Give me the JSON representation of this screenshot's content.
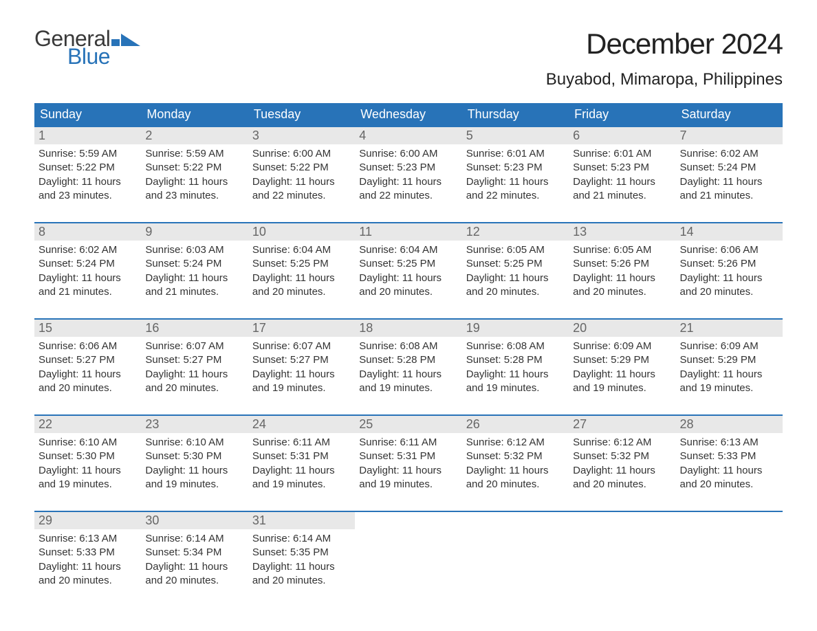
{
  "logo": {
    "line1": "General",
    "line2": "Blue",
    "shape_color": "#2873b8"
  },
  "title": "December 2024",
  "location": "Buyabod, Mimaropa, Philippines",
  "colors": {
    "header_bg": "#2873b8",
    "header_text": "#ffffff",
    "daynum_bg": "#e8e8e8",
    "daynum_text": "#666666",
    "body_text": "#333333",
    "week_border": "#2873b8"
  },
  "day_labels": [
    "Sunday",
    "Monday",
    "Tuesday",
    "Wednesday",
    "Thursday",
    "Friday",
    "Saturday"
  ],
  "weeks": [
    [
      {
        "n": "1",
        "sunrise": "5:59 AM",
        "sunset": "5:22 PM",
        "daylight": "11 hours and 23 minutes."
      },
      {
        "n": "2",
        "sunrise": "5:59 AM",
        "sunset": "5:22 PM",
        "daylight": "11 hours and 23 minutes."
      },
      {
        "n": "3",
        "sunrise": "6:00 AM",
        "sunset": "5:22 PM",
        "daylight": "11 hours and 22 minutes."
      },
      {
        "n": "4",
        "sunrise": "6:00 AM",
        "sunset": "5:23 PM",
        "daylight": "11 hours and 22 minutes."
      },
      {
        "n": "5",
        "sunrise": "6:01 AM",
        "sunset": "5:23 PM",
        "daylight": "11 hours and 22 minutes."
      },
      {
        "n": "6",
        "sunrise": "6:01 AM",
        "sunset": "5:23 PM",
        "daylight": "11 hours and 21 minutes."
      },
      {
        "n": "7",
        "sunrise": "6:02 AM",
        "sunset": "5:24 PM",
        "daylight": "11 hours and 21 minutes."
      }
    ],
    [
      {
        "n": "8",
        "sunrise": "6:02 AM",
        "sunset": "5:24 PM",
        "daylight": "11 hours and 21 minutes."
      },
      {
        "n": "9",
        "sunrise": "6:03 AM",
        "sunset": "5:24 PM",
        "daylight": "11 hours and 21 minutes."
      },
      {
        "n": "10",
        "sunrise": "6:04 AM",
        "sunset": "5:25 PM",
        "daylight": "11 hours and 20 minutes."
      },
      {
        "n": "11",
        "sunrise": "6:04 AM",
        "sunset": "5:25 PM",
        "daylight": "11 hours and 20 minutes."
      },
      {
        "n": "12",
        "sunrise": "6:05 AM",
        "sunset": "5:25 PM",
        "daylight": "11 hours and 20 minutes."
      },
      {
        "n": "13",
        "sunrise": "6:05 AM",
        "sunset": "5:26 PM",
        "daylight": "11 hours and 20 minutes."
      },
      {
        "n": "14",
        "sunrise": "6:06 AM",
        "sunset": "5:26 PM",
        "daylight": "11 hours and 20 minutes."
      }
    ],
    [
      {
        "n": "15",
        "sunrise": "6:06 AM",
        "sunset": "5:27 PM",
        "daylight": "11 hours and 20 minutes."
      },
      {
        "n": "16",
        "sunrise": "6:07 AM",
        "sunset": "5:27 PM",
        "daylight": "11 hours and 20 minutes."
      },
      {
        "n": "17",
        "sunrise": "6:07 AM",
        "sunset": "5:27 PM",
        "daylight": "11 hours and 19 minutes."
      },
      {
        "n": "18",
        "sunrise": "6:08 AM",
        "sunset": "5:28 PM",
        "daylight": "11 hours and 19 minutes."
      },
      {
        "n": "19",
        "sunrise": "6:08 AM",
        "sunset": "5:28 PM",
        "daylight": "11 hours and 19 minutes."
      },
      {
        "n": "20",
        "sunrise": "6:09 AM",
        "sunset": "5:29 PM",
        "daylight": "11 hours and 19 minutes."
      },
      {
        "n": "21",
        "sunrise": "6:09 AM",
        "sunset": "5:29 PM",
        "daylight": "11 hours and 19 minutes."
      }
    ],
    [
      {
        "n": "22",
        "sunrise": "6:10 AM",
        "sunset": "5:30 PM",
        "daylight": "11 hours and 19 minutes."
      },
      {
        "n": "23",
        "sunrise": "6:10 AM",
        "sunset": "5:30 PM",
        "daylight": "11 hours and 19 minutes."
      },
      {
        "n": "24",
        "sunrise": "6:11 AM",
        "sunset": "5:31 PM",
        "daylight": "11 hours and 19 minutes."
      },
      {
        "n": "25",
        "sunrise": "6:11 AM",
        "sunset": "5:31 PM",
        "daylight": "11 hours and 19 minutes."
      },
      {
        "n": "26",
        "sunrise": "6:12 AM",
        "sunset": "5:32 PM",
        "daylight": "11 hours and 20 minutes."
      },
      {
        "n": "27",
        "sunrise": "6:12 AM",
        "sunset": "5:32 PM",
        "daylight": "11 hours and 20 minutes."
      },
      {
        "n": "28",
        "sunrise": "6:13 AM",
        "sunset": "5:33 PM",
        "daylight": "11 hours and 20 minutes."
      }
    ],
    [
      {
        "n": "29",
        "sunrise": "6:13 AM",
        "sunset": "5:33 PM",
        "daylight": "11 hours and 20 minutes."
      },
      {
        "n": "30",
        "sunrise": "6:14 AM",
        "sunset": "5:34 PM",
        "daylight": "11 hours and 20 minutes."
      },
      {
        "n": "31",
        "sunrise": "6:14 AM",
        "sunset": "5:35 PM",
        "daylight": "11 hours and 20 minutes."
      },
      null,
      null,
      null,
      null
    ]
  ],
  "labels": {
    "sunrise_prefix": "Sunrise: ",
    "sunset_prefix": "Sunset: ",
    "daylight_prefix": "Daylight: "
  }
}
